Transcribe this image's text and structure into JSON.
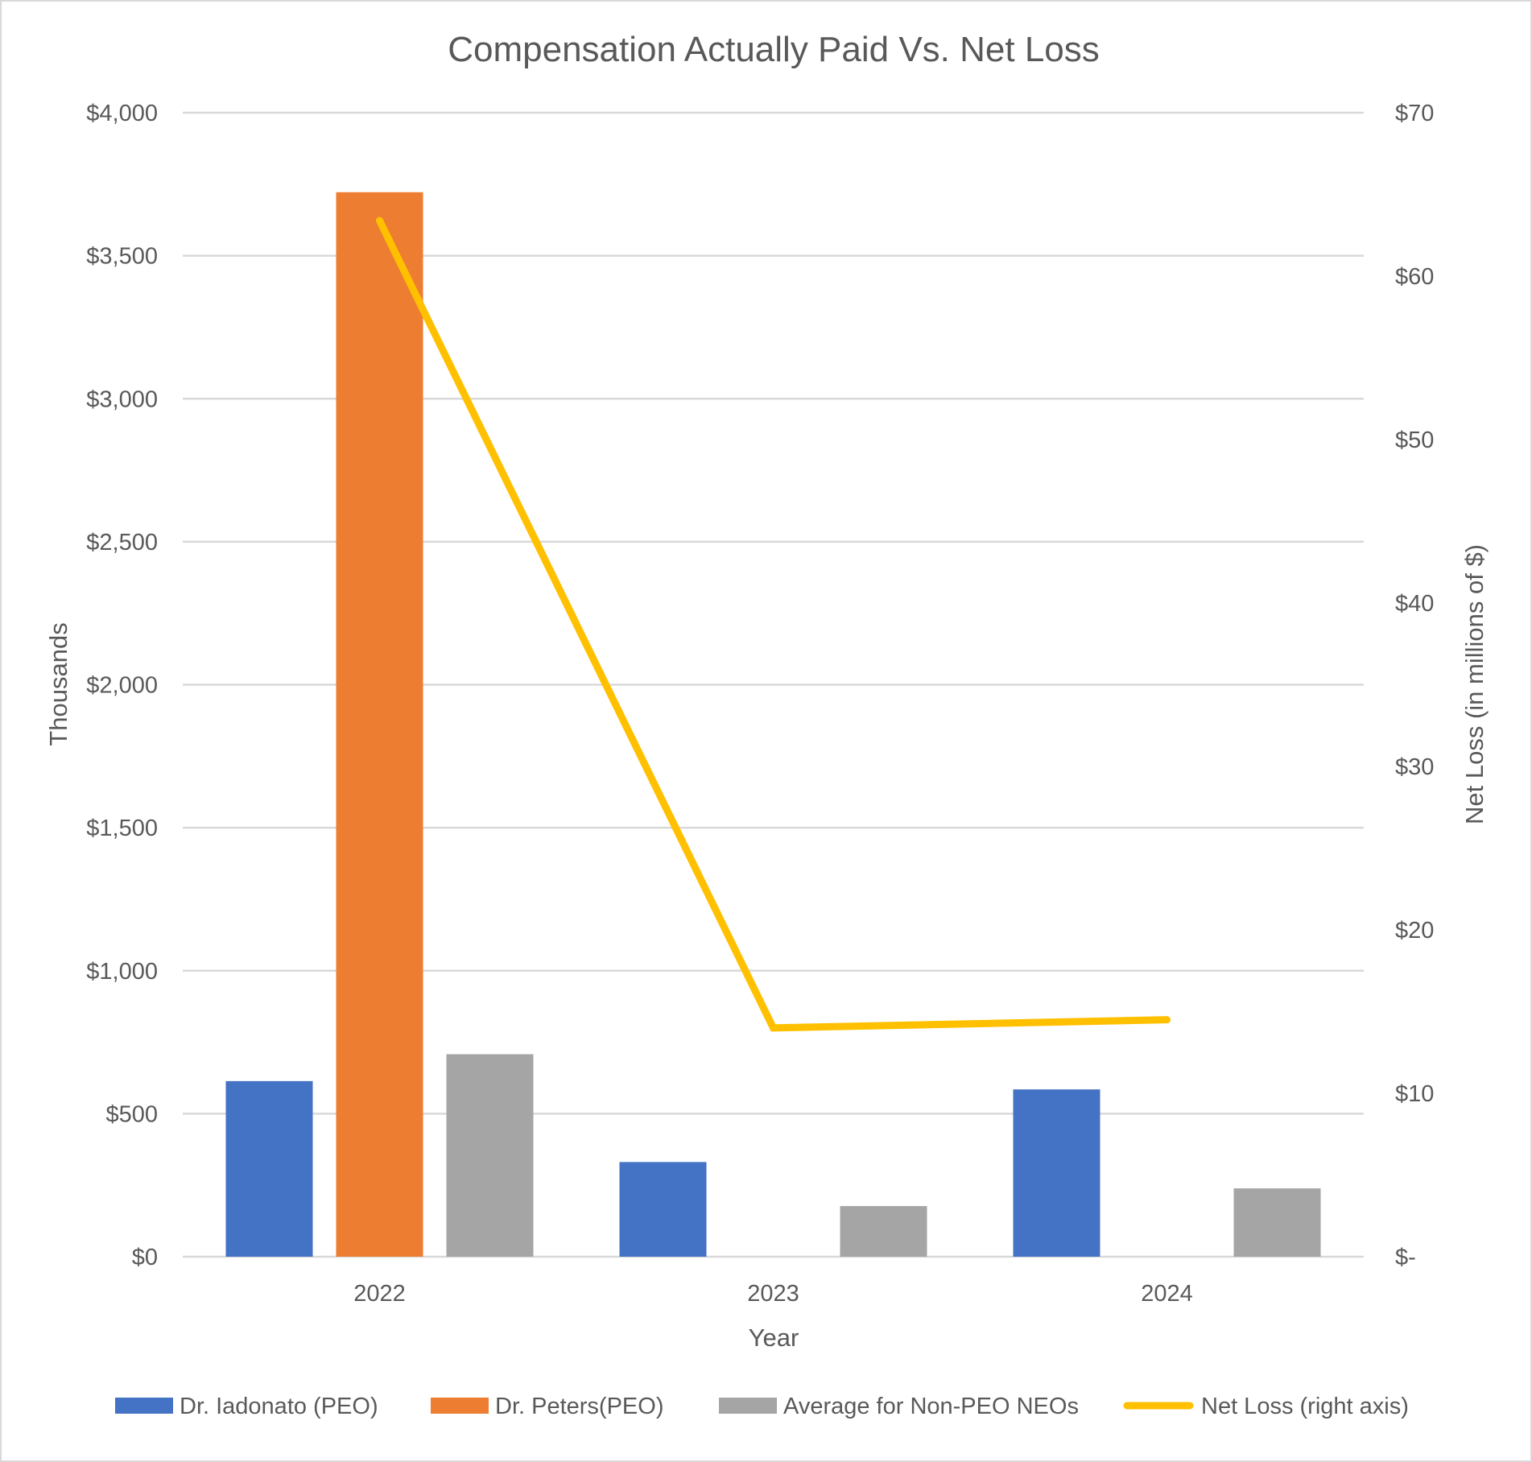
{
  "chart_data": {
    "type": "bar",
    "title": "Compensation Actually Paid Vs. Net Loss",
    "xlabel": "Year",
    "ylabel": "Thousands",
    "y2label": "Net Loss (in millions of $)",
    "categories": [
      "2022",
      "2023",
      "2024"
    ],
    "ylim": [
      0,
      4000
    ],
    "y2lim": [
      0,
      70
    ],
    "yticks": [
      "$0",
      "$500",
      "$1,000",
      "$1,500",
      "$2,000",
      "$2,500",
      "$3,000",
      "$3,500",
      "$4,000"
    ],
    "y2ticks": [
      "$-",
      "$10",
      "$20",
      "$30",
      "$40",
      "$50",
      "$60",
      "$70"
    ],
    "grid": true,
    "legend_position": "bottom",
    "series": [
      {
        "name": "Dr. Iadonato (PEO)",
        "type": "bar",
        "axis": "left",
        "color": "#4472C4",
        "values": [
          614,
          331,
          585
        ]
      },
      {
        "name": "Dr. Peters(PEO)",
        "type": "bar",
        "axis": "left",
        "color": "#ED7D31",
        "values": [
          3722,
          null,
          null
        ]
      },
      {
        "name": "Average for Non-PEO NEOs",
        "type": "bar",
        "axis": "left",
        "color": "#A5A5A5",
        "values": [
          708,
          177,
          239
        ]
      },
      {
        "name": "Net Loss (right axis)",
        "type": "line",
        "axis": "right",
        "color": "#FFC000",
        "values": [
          63.4,
          14.0,
          14.5
        ]
      }
    ]
  }
}
